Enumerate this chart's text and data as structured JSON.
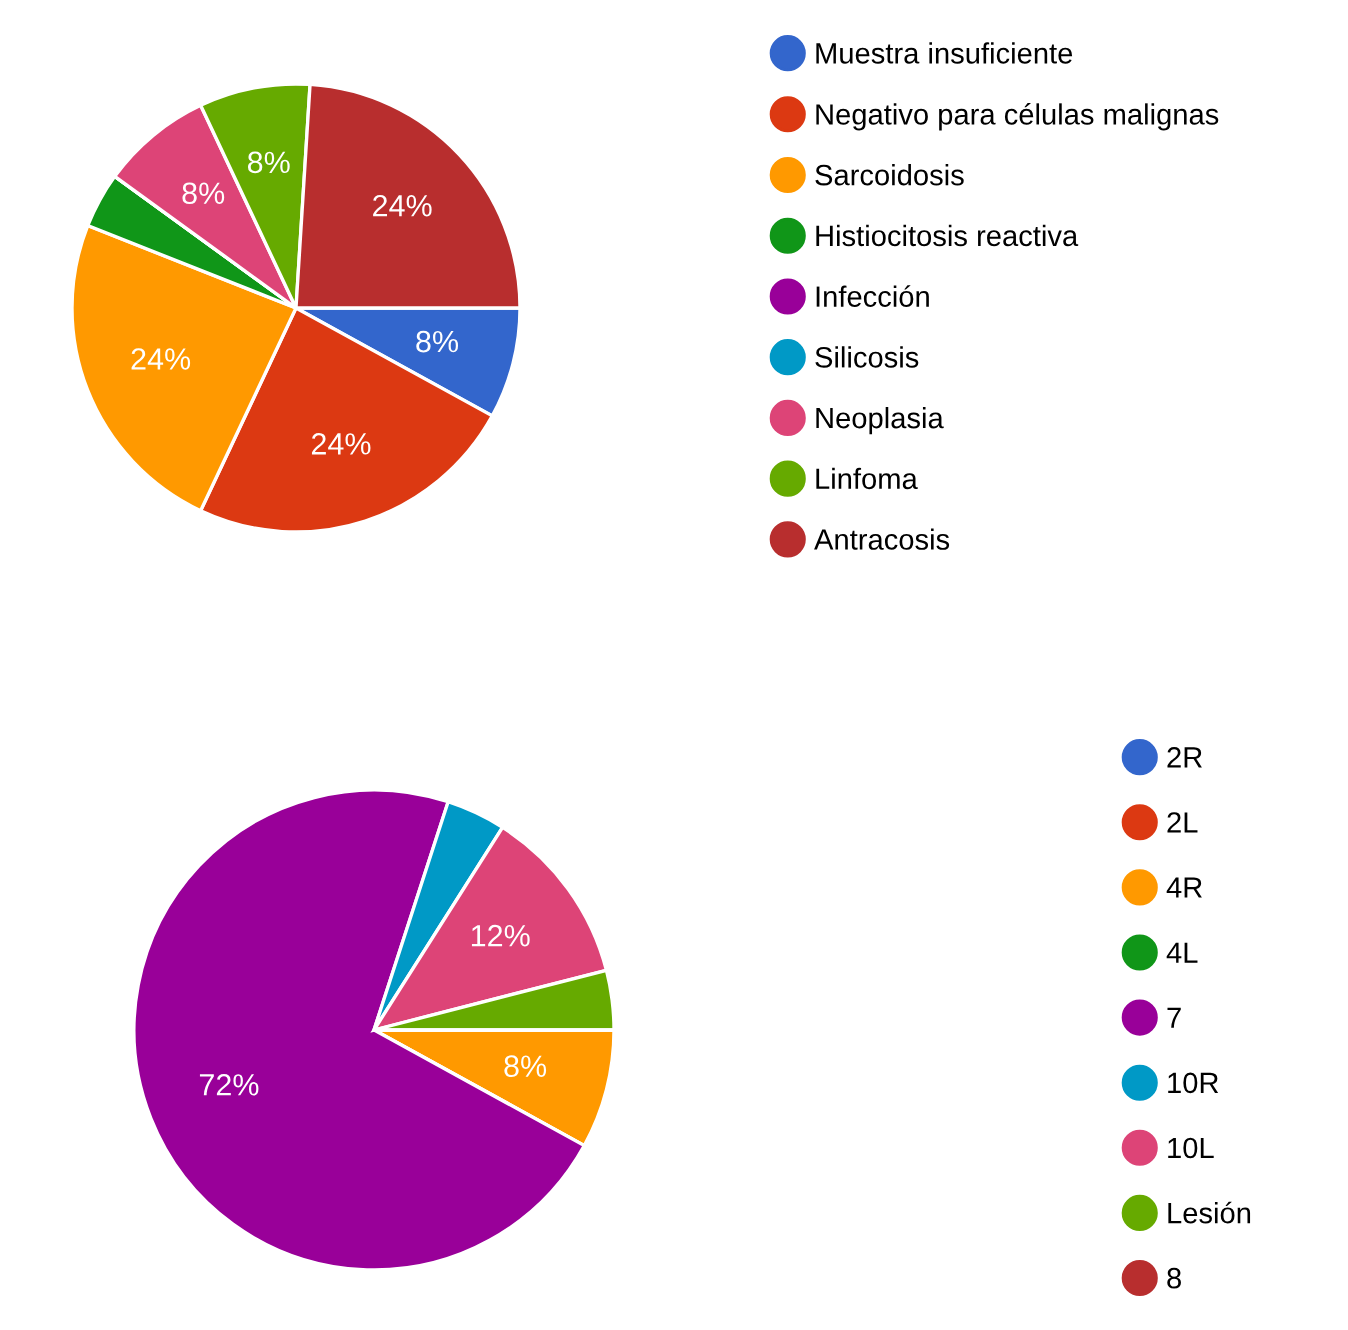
{
  "chart_data": [
    {
      "type": "pie",
      "categories": [
        "Muestra insuficiente",
        "Negativo para células malignas",
        "Sarcoidosis",
        "Histiocitosis reactiva",
        "Infección",
        "Silicosis",
        "Neoplasia",
        "Linfoma",
        "Antracosis"
      ],
      "values": [
        8,
        24,
        24,
        4,
        0,
        0,
        8,
        8,
        24
      ],
      "value_labels": [
        "8%",
        "24%",
        "24%",
        null,
        null,
        null,
        "8%",
        "8%",
        "24%"
      ],
      "colors": [
        "#3366cc",
        "#dc3912",
        "#ff9900",
        "#109618",
        "#990099",
        "#0099c6",
        "#dd4477",
        "#66aa00",
        "#b82e2e"
      ],
      "legend": "right"
    },
    {
      "type": "pie",
      "categories": [
        "2R",
        "2L",
        "4R",
        "4L",
        "7",
        "10R",
        "10L",
        "Lesión",
        "8"
      ],
      "values": [
        0,
        0,
        8,
        0,
        72,
        4,
        12,
        4,
        0
      ],
      "value_labels": [
        null,
        null,
        "8%",
        null,
        "72%",
        null,
        "12%",
        null,
        null
      ],
      "colors": [
        "#3366cc",
        "#dc3912",
        "#ff9900",
        "#109618",
        "#990099",
        "#0099c6",
        "#dd4477",
        "#66aa00",
        "#b82e2e"
      ],
      "legend": "right"
    }
  ]
}
